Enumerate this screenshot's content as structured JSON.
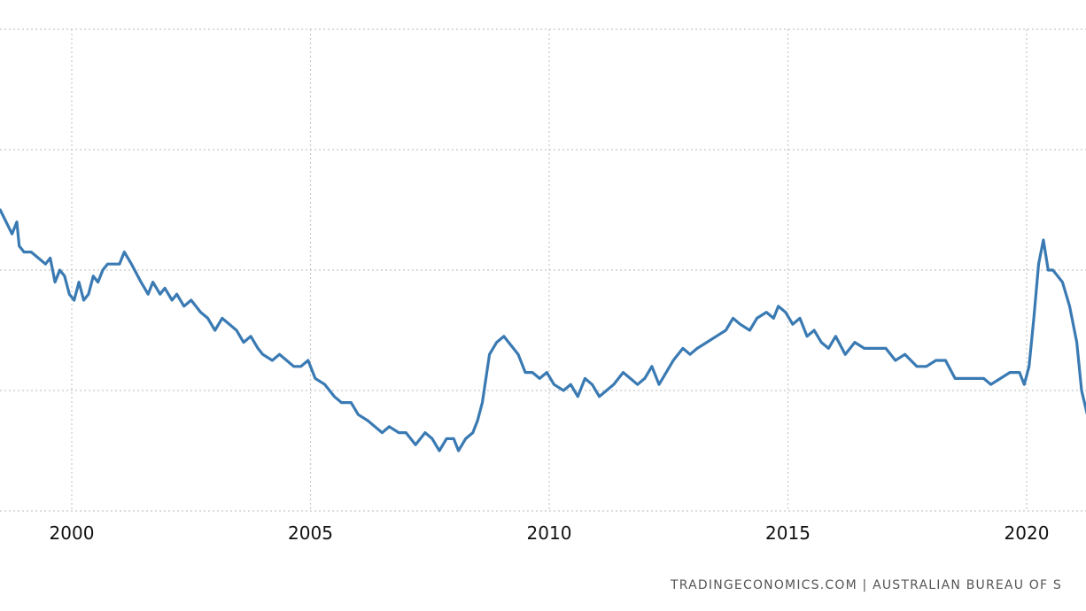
{
  "chart_data": {
    "type": "line",
    "title": "",
    "xlabel": "",
    "ylabel": "",
    "x_ticks": [
      "2000",
      "2005",
      "2010",
      "2015",
      "2020"
    ],
    "xlim": [
      1998.5,
      2021.3
    ],
    "y_gridlines": 5,
    "grid": true,
    "legend": "none",
    "series": [
      {
        "color": "#3a7ab3",
        "x": [
          1998.5,
          1998.75,
          1998.85,
          1998.9,
          1999.0,
          1999.15,
          1999.3,
          1999.45,
          1999.55,
          1999.65,
          1999.75,
          1999.85,
          1999.95,
          2000.05,
          2000.15,
          2000.25,
          2000.35,
          2000.45,
          2000.55,
          2000.65,
          2000.75,
          2000.85,
          2001.0,
          2001.1,
          2001.25,
          2001.45,
          2001.6,
          2001.7,
          2001.85,
          2001.95,
          2002.1,
          2002.2,
          2002.35,
          2002.5,
          2002.7,
          2002.85,
          2003.0,
          2003.15,
          2003.3,
          2003.45,
          2003.6,
          2003.75,
          2003.9,
          2004.0,
          2004.2,
          2004.35,
          2004.5,
          2004.65,
          2004.8,
          2004.95,
          2005.1,
          2005.3,
          2005.5,
          2005.65,
          2005.85,
          2006.0,
          2006.2,
          2006.35,
          2006.5,
          2006.65,
          2006.85,
          2007.0,
          2007.2,
          2007.4,
          2007.55,
          2007.7,
          2007.85,
          2008.0,
          2008.1,
          2008.25,
          2008.4,
          2008.5,
          2008.6,
          2008.75,
          2008.9,
          2009.05,
          2009.15,
          2009.25,
          2009.35,
          2009.5,
          2009.65,
          2009.8,
          2009.95,
          2010.1,
          2010.3,
          2010.45,
          2010.6,
          2010.75,
          2010.9,
          2011.05,
          2011.2,
          2011.35,
          2011.55,
          2011.7,
          2011.85,
          2012.0,
          2012.15,
          2012.3,
          2012.45,
          2012.6,
          2012.8,
          2012.95,
          2013.1,
          2013.3,
          2013.5,
          2013.7,
          2013.85,
          2014.0,
          2014.2,
          2014.35,
          2014.55,
          2014.7,
          2014.8,
          2014.95,
          2015.1,
          2015.25,
          2015.4,
          2015.55,
          2015.7,
          2015.85,
          2016.0,
          2016.2,
          2016.4,
          2016.6,
          2016.85,
          2017.05,
          2017.25,
          2017.45,
          2017.7,
          2017.9,
          2018.1,
          2018.3,
          2018.5,
          2018.65,
          2018.8,
          2018.95,
          2019.1,
          2019.25,
          2019.45,
          2019.65,
          2019.85,
          2019.95,
          2020.05,
          2020.15,
          2020.25,
          2020.35,
          2020.45,
          2020.55,
          2020.65,
          2020.75,
          2020.9,
          2021.05,
          2021.15,
          2021.3
        ],
        "y": [
          8.0,
          7.6,
          7.8,
          7.4,
          7.3,
          7.3,
          7.2,
          7.1,
          7.2,
          6.8,
          7.0,
          6.9,
          6.6,
          6.5,
          6.8,
          6.5,
          6.6,
          6.9,
          6.8,
          7.0,
          7.1,
          7.1,
          7.1,
          7.3,
          7.1,
          6.8,
          6.6,
          6.8,
          6.6,
          6.7,
          6.5,
          6.6,
          6.4,
          6.5,
          6.3,
          6.2,
          6.0,
          6.2,
          6.1,
          6.0,
          5.8,
          5.9,
          5.7,
          5.6,
          5.5,
          5.6,
          5.5,
          5.4,
          5.4,
          5.5,
          5.2,
          5.1,
          4.9,
          4.8,
          4.8,
          4.6,
          4.5,
          4.4,
          4.3,
          4.4,
          4.3,
          4.3,
          4.1,
          4.3,
          4.2,
          4.0,
          4.2,
          4.2,
          4.0,
          4.2,
          4.3,
          4.5,
          4.8,
          5.6,
          5.8,
          5.9,
          5.8,
          5.7,
          5.6,
          5.3,
          5.3,
          5.2,
          5.3,
          5.1,
          5.0,
          5.1,
          4.9,
          5.2,
          5.1,
          4.9,
          5.0,
          5.1,
          5.3,
          5.2,
          5.1,
          5.2,
          5.4,
          5.1,
          5.3,
          5.5,
          5.7,
          5.6,
          5.7,
          5.8,
          5.9,
          6.0,
          6.2,
          6.1,
          6.0,
          6.2,
          6.3,
          6.2,
          6.4,
          6.3,
          6.1,
          6.2,
          5.9,
          6.0,
          5.8,
          5.7,
          5.9,
          5.6,
          5.8,
          5.7,
          5.7,
          5.7,
          5.5,
          5.6,
          5.4,
          5.4,
          5.5,
          5.5,
          5.2,
          5.2,
          5.2,
          5.2,
          5.2,
          5.1,
          5.2,
          5.3,
          5.3,
          5.1,
          5.4,
          6.2,
          7.1,
          7.5,
          7.0,
          7.0,
          6.9,
          6.8,
          6.4,
          5.8,
          5.0,
          4.5
        ]
      }
    ]
  },
  "footer": {
    "source": "TRADINGECONOMICS.COM  |  AUSTRALIAN BUREAU OF S"
  }
}
